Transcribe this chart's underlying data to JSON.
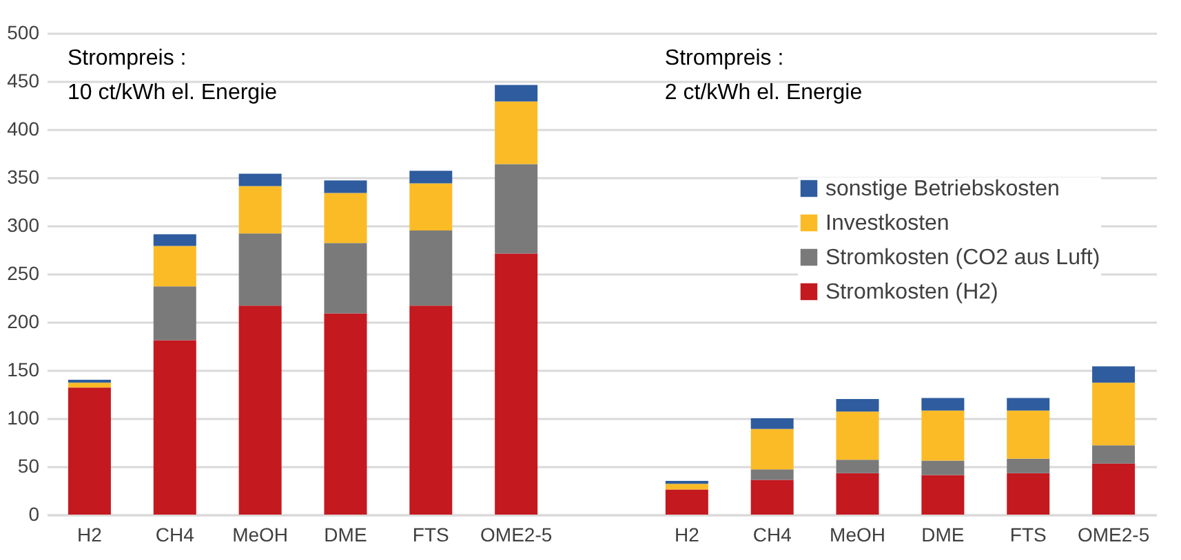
{
  "chart_data": {
    "type": "bar",
    "stacked": true,
    "categories": [
      "H2",
      "CH4",
      "MeOH",
      "DME",
      "FTS",
      "OME2-5",
      null,
      "H2",
      "CH4",
      "MeOH",
      "DME",
      "FTS",
      "OME2-5"
    ],
    "series": [
      {
        "name": "Stromkosten (H2)",
        "color": "#c3191f",
        "values": [
          132,
          181,
          217,
          209,
          217,
          271,
          null,
          26,
          36,
          43,
          41,
          43,
          53
        ]
      },
      {
        "name": "Stromkosten (CO2 aus Luft)",
        "color": "#7a7a7a",
        "values": [
          0,
          56,
          75,
          73,
          78,
          93,
          null,
          0,
          11,
          14,
          15,
          15,
          19
        ]
      },
      {
        "name": "Investkosten",
        "color": "#fbbb27",
        "values": [
          5,
          42,
          49,
          52,
          49,
          65,
          null,
          6,
          42,
          50,
          52,
          50,
          65
        ]
      },
      {
        "name": "sonstige Betriebskosten",
        "color": "#2e5c9e",
        "values": [
          3,
          12,
          13,
          13,
          13,
          17,
          null,
          3,
          11,
          13,
          13,
          13,
          17
        ]
      }
    ],
    "annotations": [
      "Strompreis :\n10 ct/kWh el. Energie",
      "Strompreis :\n2 ct/kWh el. Energie"
    ],
    "ylim": [
      0,
      500
    ],
    "yticks": [
      0,
      50,
      100,
      150,
      200,
      250,
      300,
      350,
      400,
      450,
      500
    ],
    "grid": "y",
    "legend": "top right"
  }
}
